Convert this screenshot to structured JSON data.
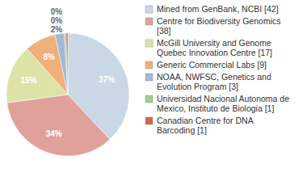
{
  "chart_data": {
    "type": "pie",
    "categories": [
      "Mined from GenBank, NCBI [42]",
      "Centre for Biodiversity Genomics [38]",
      "McGill University and Genome Quebec Innovation Centre [17]",
      "Generic Commercial Labs [9]",
      "NOAA, NWFSC, Genetics and Evolution Program [3]",
      "Universidad Nacional Autonoma de Mexico, Instituto de Biologia [1]",
      "Canadian Centre for DNA Barcoding [1]"
    ],
    "values": [
      37.4,
      34.3,
      15.3,
      8.1,
      2.4,
      0.45,
      0.45
    ],
    "value_labels": [
      "37%",
      "34%",
      "15%",
      "8%",
      "2%",
      "0%",
      "0%"
    ],
    "colors": [
      "#cad7e6",
      "#e0a19b",
      "#dde3a7",
      "#f0b07c",
      "#a3b7d6",
      "#a2cf8e",
      "#d6654b"
    ],
    "data_labels": true,
    "legend": "right"
  }
}
